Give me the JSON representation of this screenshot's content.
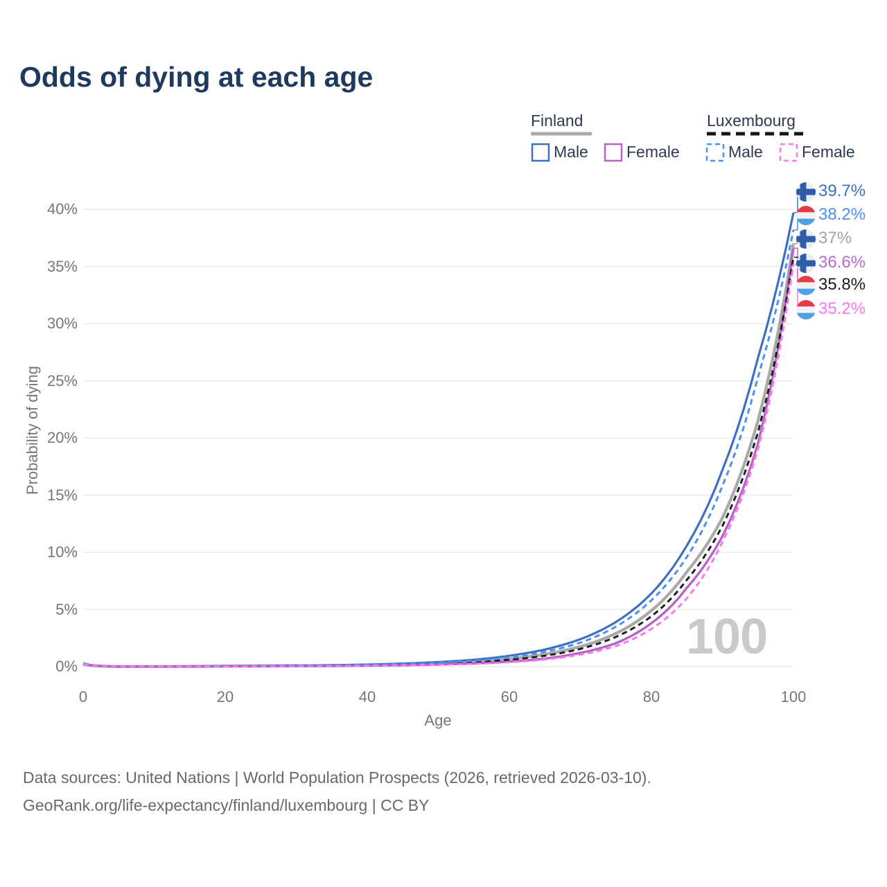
{
  "title": "Odds of dying at each age",
  "watermark": "100",
  "legend": {
    "groups": [
      {
        "country": "Finland",
        "line_style": "solid",
        "underline_color": "#A8A8A8",
        "items": [
          {
            "label": "Male",
            "color": "#3F6FC0"
          },
          {
            "label": "Female",
            "color": "#B465C4"
          }
        ]
      },
      {
        "country": "Luxembourg",
        "line_style": "dashed",
        "underline_color": "#161616",
        "items": [
          {
            "label": "Male",
            "color": "#4E8EF7"
          },
          {
            "label": "Female",
            "color": "#F878F0"
          }
        ]
      }
    ]
  },
  "axes": {
    "x_title": "Age",
    "y_title": "Probability of dying",
    "x_ticks": [
      0,
      20,
      40,
      60,
      80,
      100
    ],
    "y_ticks": [
      "0%",
      "5%",
      "10%",
      "15%",
      "20%",
      "25%",
      "30%",
      "35%",
      "40%"
    ]
  },
  "footer": {
    "line1": "Data sources: United Nations | World Population Prospects (2026, retrieved 2026-03-10).",
    "line2": "GeoRank.org/life-expectancy/finland/luxembourg | CC BY"
  },
  "chart_data": {
    "type": "line",
    "title": "Odds of dying at each age",
    "xlabel": "Age",
    "ylabel": "Probability of dying",
    "x_range": [
      0,
      100
    ],
    "y_range_percent": [
      0,
      42
    ],
    "grid": "horizontal-only",
    "legend_position": "top-right",
    "ages": [
      0,
      5,
      10,
      15,
      20,
      25,
      30,
      35,
      40,
      45,
      50,
      55,
      60,
      65,
      70,
      75,
      80,
      85,
      90,
      95,
      100
    ],
    "series": [
      {
        "id": "finland-total",
        "name": "Finland (both sexes)",
        "country": "finland",
        "sex": "total",
        "style": "solid",
        "color": "#A9A9A9",
        "label_color": "#A3A3A3",
        "end_label": "37%",
        "values_percent": [
          0.22,
          0.01,
          0.01,
          0.02,
          0.04,
          0.06,
          0.07,
          0.09,
          0.13,
          0.19,
          0.29,
          0.43,
          0.68,
          1.08,
          1.75,
          2.9,
          4.9,
          8.3,
          13.0,
          21.5,
          37.0
        ]
      },
      {
        "id": "finland-male",
        "name": "Finland Male",
        "country": "finland",
        "sex": "male",
        "style": "solid",
        "color": "#3F6FC0",
        "label_color": "#3F6FC0",
        "end_label": "39.7%",
        "values_percent": [
          0.25,
          0.01,
          0.01,
          0.03,
          0.06,
          0.08,
          0.1,
          0.13,
          0.18,
          0.27,
          0.4,
          0.6,
          0.95,
          1.5,
          2.4,
          3.9,
          6.4,
          10.6,
          17.2,
          27.0,
          39.7
        ]
      },
      {
        "id": "finland-female",
        "name": "Finland Female",
        "country": "finland",
        "sex": "female",
        "style": "solid",
        "color": "#B465C4",
        "label_color": "#B76BC9",
        "end_label": "36.6%",
        "values_percent": [
          0.2,
          0.01,
          0.01,
          0.01,
          0.03,
          0.03,
          0.04,
          0.06,
          0.08,
          0.12,
          0.19,
          0.28,
          0.44,
          0.7,
          1.2,
          2.05,
          3.8,
          6.9,
          11.4,
          19.5,
          36.6
        ]
      },
      {
        "id": "luxembourg-total",
        "name": "Luxembourg (both sexes)",
        "country": "luxembourg",
        "sex": "total",
        "style": "dashed",
        "color": "#1F1F1F",
        "label_color": "#1A1A1A",
        "end_label": "35.8%",
        "values_percent": [
          0.26,
          0.01,
          0.01,
          0.02,
          0.03,
          0.05,
          0.06,
          0.08,
          0.11,
          0.17,
          0.26,
          0.38,
          0.6,
          0.95,
          1.55,
          2.6,
          4.4,
          7.6,
          12.3,
          20.5,
          35.8
        ]
      },
      {
        "id": "luxembourg-male",
        "name": "Luxembourg Male",
        "country": "luxembourg",
        "sex": "male",
        "style": "dashed",
        "color": "#4E8EF7",
        "label_color": "#4E8EF7",
        "end_label": "38.2%",
        "values_percent": [
          0.3,
          0.01,
          0.01,
          0.02,
          0.05,
          0.07,
          0.09,
          0.11,
          0.15,
          0.23,
          0.35,
          0.52,
          0.82,
          1.3,
          2.1,
          3.5,
          5.8,
          9.6,
          15.8,
          25.3,
          38.2
        ]
      },
      {
        "id": "luxembourg-female",
        "name": "Luxembourg Female",
        "country": "luxembourg",
        "sex": "female",
        "style": "dashed",
        "color": "#F878F0",
        "label_color": "#F878F0",
        "end_label": "35.2%",
        "values_percent": [
          0.22,
          0.01,
          0.01,
          0.01,
          0.02,
          0.03,
          0.04,
          0.05,
          0.07,
          0.11,
          0.17,
          0.25,
          0.39,
          0.62,
          1.05,
          1.8,
          3.3,
          6.0,
          10.9,
          19.0,
          35.2
        ]
      }
    ]
  }
}
